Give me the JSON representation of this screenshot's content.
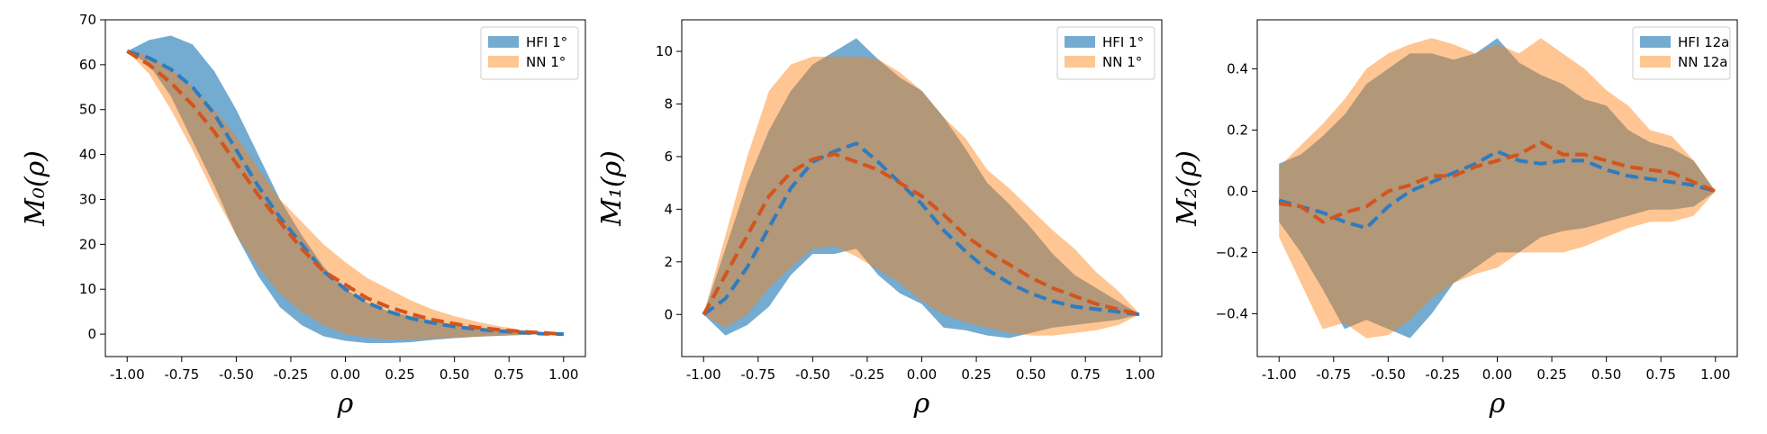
{
  "chart_data": [
    {
      "type": "area",
      "xlabel": "ρ",
      "ylabel": "M₀(ρ)",
      "xlim": [
        -1.1,
        1.1
      ],
      "ylim": [
        -5,
        70
      ],
      "xticks": [
        "-1.00",
        "-0.75",
        "-0.50",
        "-0.25",
        "0.00",
        "0.25",
        "0.50",
        "0.75",
        "1.00"
      ],
      "yticks": [
        "0",
        "10",
        "20",
        "30",
        "40",
        "50",
        "60",
        "70"
      ],
      "legend": "top-right",
      "x": [
        -1.0,
        -0.9,
        -0.8,
        -0.7,
        -0.6,
        -0.5,
        -0.4,
        -0.3,
        -0.2,
        -0.1,
        0.0,
        0.1,
        0.2,
        0.3,
        0.4,
        0.5,
        0.6,
        0.7,
        0.8,
        0.9,
        1.0
      ],
      "series": [
        {
          "name": "HFI 1°",
          "color": "#1f77b4",
          "lower": [
            63,
            60,
            53,
            43,
            33,
            22,
            13,
            6,
            2,
            -0.5,
            -1.5,
            -2,
            -2,
            -1.8,
            -1.3,
            -0.9,
            -0.6,
            -0.4,
            -0.2,
            0,
            0
          ],
          "mean": [
            63,
            61.5,
            59,
            55,
            49,
            41,
            33,
            26,
            20,
            14,
            10,
            7,
            5,
            3.5,
            2.5,
            1.7,
            1.1,
            0.7,
            0.4,
            0.1,
            0
          ],
          "upper": [
            63,
            65.5,
            66.5,
            64.5,
            58.5,
            50,
            40,
            30,
            22,
            15,
            10,
            7,
            5,
            4,
            3,
            2,
            1.3,
            0.8,
            0.4,
            0.2,
            0
          ]
        },
        {
          "name": "NN 1°",
          "color": "#ff7f0e",
          "lower": [
            63,
            58,
            50,
            41,
            31,
            22,
            15,
            9,
            5,
            2,
            0,
            -0.8,
            -1.2,
            -1.2,
            -1,
            -0.8,
            -0.6,
            -0.4,
            -0.2,
            0,
            0
          ],
          "mean": [
            63,
            60,
            56,
            51,
            45,
            38,
            31,
            25,
            19,
            14,
            11,
            8,
            6,
            4.5,
            3.2,
            2.3,
            1.5,
            1,
            0.6,
            0.3,
            0
          ],
          "upper": [
            63,
            62,
            59,
            55,
            50,
            44,
            37,
            30,
            25,
            20,
            16,
            12.5,
            10,
            7.5,
            5.5,
            4,
            2.8,
            1.8,
            1,
            0.5,
            0
          ]
        }
      ]
    },
    {
      "type": "area",
      "xlabel": "ρ",
      "ylabel": "M₁(ρ)",
      "xlim": [
        -1.1,
        1.1
      ],
      "ylim": [
        -1.6,
        11.2
      ],
      "xticks": [
        "-1.00",
        "-0.75",
        "-0.50",
        "-0.25",
        "0.00",
        "0.25",
        "0.50",
        "0.75",
        "1.00"
      ],
      "yticks": [
        "0",
        "2",
        "4",
        "6",
        "8",
        "10"
      ],
      "legend": "top-right",
      "x": [
        -1.0,
        -0.9,
        -0.8,
        -0.7,
        -0.6,
        -0.5,
        -0.4,
        -0.3,
        -0.2,
        -0.1,
        0.0,
        0.1,
        0.2,
        0.3,
        0.4,
        0.5,
        0.6,
        0.7,
        0.8,
        0.9,
        1.0
      ],
      "series": [
        {
          "name": "HFI 1°",
          "color": "#1f77b4",
          "lower": [
            0,
            -0.8,
            -0.4,
            0.3,
            1.5,
            2.3,
            2.3,
            2.5,
            1.5,
            0.8,
            0.4,
            -0.5,
            -0.6,
            -0.8,
            -0.9,
            -0.7,
            -0.5,
            -0.4,
            -0.3,
            -0.2,
            0
          ],
          "mean": [
            0,
            0.6,
            1.8,
            3.3,
            4.8,
            5.8,
            6.2,
            6.5,
            5.8,
            5,
            4.2,
            3.2,
            2.4,
            1.7,
            1.2,
            0.8,
            0.5,
            0.3,
            0.2,
            0.1,
            0
          ],
          "upper": [
            0,
            2.5,
            5,
            7,
            8.5,
            9.5,
            10,
            10.5,
            9.7,
            9,
            8.5,
            7.5,
            6.3,
            5,
            4.2,
            3.3,
            2.3,
            1.5,
            1,
            0.5,
            0
          ]
        },
        {
          "name": "NN 1°",
          "color": "#ff7f0e",
          "lower": [
            0,
            -0.5,
            0,
            1,
            1.8,
            2.5,
            2.6,
            2.2,
            1.7,
            1.2,
            0.5,
            0,
            -0.3,
            -0.5,
            -0.7,
            -0.8,
            -0.8,
            -0.7,
            -0.6,
            -0.4,
            0
          ],
          "mean": [
            0,
            1.5,
            3,
            4.5,
            5.4,
            5.9,
            6.1,
            5.8,
            5.5,
            5,
            4.5,
            3.8,
            3,
            2.4,
            1.9,
            1.4,
            1,
            0.7,
            0.4,
            0.2,
            0
          ],
          "upper": [
            0,
            3,
            6,
            8.5,
            9.5,
            9.8,
            9.8,
            9.8,
            9.7,
            9.2,
            8.5,
            7.5,
            6.7,
            5.5,
            4.8,
            4,
            3.2,
            2.5,
            1.6,
            0.9,
            0
          ]
        }
      ]
    },
    {
      "type": "area",
      "xlabel": "ρ",
      "ylabel": "M₂(ρ)",
      "xlim": [
        -1.1,
        1.1
      ],
      "ylim": [
        -0.54,
        0.56
      ],
      "xticks": [
        "-1.00",
        "-0.75",
        "-0.50",
        "-0.25",
        "0.00",
        "0.25",
        "0.50",
        "0.75",
        "1.00"
      ],
      "yticks": [
        "−0.4",
        "−0.2",
        "0.0",
        "0.2",
        "0.4"
      ],
      "ytick_values": [
        -0.4,
        -0.2,
        0.0,
        0.2,
        0.4
      ],
      "legend": "top-right",
      "x": [
        -1.0,
        -0.9,
        -0.8,
        -0.7,
        -0.6,
        -0.5,
        -0.4,
        -0.3,
        -0.2,
        -0.1,
        0.0,
        0.1,
        0.2,
        0.3,
        0.4,
        0.5,
        0.6,
        0.7,
        0.8,
        0.9,
        1.0
      ],
      "series": [
        {
          "name": "HFI 12a",
          "color": "#1f77b4",
          "lower": [
            -0.1,
            -0.2,
            -0.32,
            -0.45,
            -0.42,
            -0.45,
            -0.48,
            -0.4,
            -0.3,
            -0.25,
            -0.2,
            -0.2,
            -0.15,
            -0.13,
            -0.12,
            -0.1,
            -0.08,
            -0.06,
            -0.06,
            -0.05,
            0
          ],
          "mean": [
            -0.03,
            -0.05,
            -0.07,
            -0.1,
            -0.12,
            -0.05,
            0,
            0.03,
            0.06,
            0.09,
            0.13,
            0.1,
            0.09,
            0.1,
            0.1,
            0.07,
            0.05,
            0.04,
            0.03,
            0.02,
            0
          ],
          "upper": [
            0.09,
            0.12,
            0.18,
            0.25,
            0.35,
            0.4,
            0.45,
            0.45,
            0.43,
            0.45,
            0.5,
            0.42,
            0.38,
            0.35,
            0.3,
            0.28,
            0.2,
            0.16,
            0.14,
            0.1,
            0
          ]
        },
        {
          "name": "NN 12a",
          "color": "#ff7f0e",
          "lower": [
            -0.15,
            -0.3,
            -0.45,
            -0.43,
            -0.48,
            -0.47,
            -0.42,
            -0.35,
            -0.3,
            -0.27,
            -0.25,
            -0.2,
            -0.2,
            -0.2,
            -0.18,
            -0.15,
            -0.12,
            -0.1,
            -0.1,
            -0.08,
            0
          ],
          "mean": [
            -0.04,
            -0.05,
            -0.1,
            -0.07,
            -0.05,
            0,
            0.02,
            0.05,
            0.05,
            0.08,
            0.1,
            0.12,
            0.16,
            0.12,
            0.12,
            0.1,
            0.08,
            0.07,
            0.06,
            0.03,
            0
          ],
          "upper": [
            0.08,
            0.15,
            0.22,
            0.3,
            0.4,
            0.45,
            0.48,
            0.5,
            0.48,
            0.45,
            0.48,
            0.45,
            0.5,
            0.45,
            0.4,
            0.33,
            0.28,
            0.2,
            0.18,
            0.1,
            0
          ]
        }
      ]
    }
  ]
}
